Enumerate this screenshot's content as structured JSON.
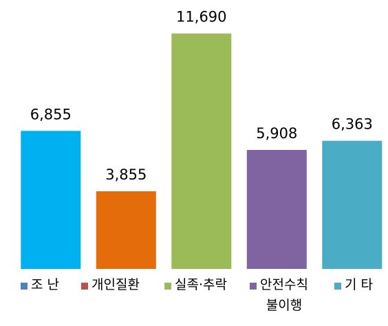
{
  "chart_data": {
    "type": "bar",
    "categories": [
      "조 난",
      "개인질환",
      "실족·추락",
      "안전수칙\n불이행",
      "기 타"
    ],
    "values": [
      6855,
      3855,
      11690,
      5908,
      6363
    ],
    "value_labels": [
      "6,855",
      "3,855",
      "11,690",
      "5,908",
      "6,363"
    ],
    "colors": [
      "#00b0f0",
      "#e46c0a",
      "#9bbb59",
      "#8064a2",
      "#4bacc6"
    ],
    "legend_colors": [
      "#4f81bd",
      "#c0504d",
      "#9bbb59",
      "#8064a2",
      "#4bacc6"
    ],
    "title": "",
    "xlabel": "",
    "ylabel": "",
    "ylim": [
      0,
      12500
    ],
    "grid": false,
    "legend_position": "bottom"
  }
}
